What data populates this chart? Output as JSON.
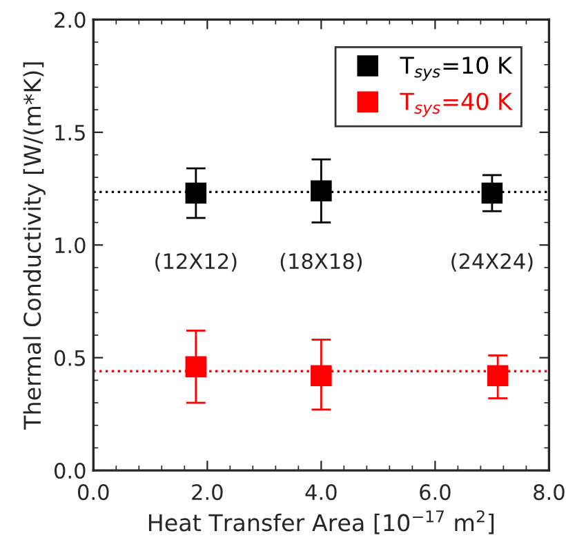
{
  "chart_data": {
    "type": "scatter",
    "xlabel": "Heat Transfer Area [10$^{−17}$ m$^{2}$]",
    "ylabel": "Thermal Conductivity [W/(m*K)]",
    "xlim": [
      0,
      8
    ],
    "ylim": [
      0,
      2
    ],
    "xticks": [
      {
        "value": 0,
        "label": "0.0"
      },
      {
        "value": 2,
        "label": "2.0"
      },
      {
        "value": 4,
        "label": "4.0"
      },
      {
        "value": 6,
        "label": "6.0"
      },
      {
        "value": 8,
        "label": "8.0"
      }
    ],
    "yticks": [
      {
        "value": 0,
        "label": "0.0"
      },
      {
        "value": 0.5,
        "label": "0.5"
      },
      {
        "value": 1,
        "label": "1.0"
      },
      {
        "value": 1.5,
        "label": "1.5"
      },
      {
        "value": 2,
        "label": "2.0"
      }
    ],
    "marker": "square",
    "legend": "top right",
    "grid": false,
    "series": [
      {
        "name": "T$_{sys}$=10 K",
        "color": "#000000",
        "x": [
          1.8,
          4.0,
          7.0
        ],
        "values": [
          1.23,
          1.24,
          1.23
        ],
        "errors": [
          [
            1.12,
            1.34
          ],
          [
            1.1,
            1.38
          ],
          [
            1.15,
            1.31
          ]
        ]
      },
      {
        "name": "T$_{sys}$=40 K",
        "color": "#ff0000",
        "x": [
          1.8,
          4.0,
          7.1
        ],
        "values": [
          0.46,
          0.42,
          0.42
        ],
        "errors": [
          [
            0.3,
            0.62
          ],
          [
            0.27,
            0.58
          ],
          [
            0.32,
            0.51
          ]
        ]
      }
    ],
    "ref_lines": [
      {
        "axis": "y",
        "value": 1.235,
        "color": "#000000",
        "line_style": "dotted"
      },
      {
        "axis": "y",
        "value": 0.44,
        "color": "#ff0000",
        "line_style": "dotted"
      }
    ],
    "annotations": [
      "(12X12)",
      "(18X18)",
      "(24X24)"
    ]
  }
}
